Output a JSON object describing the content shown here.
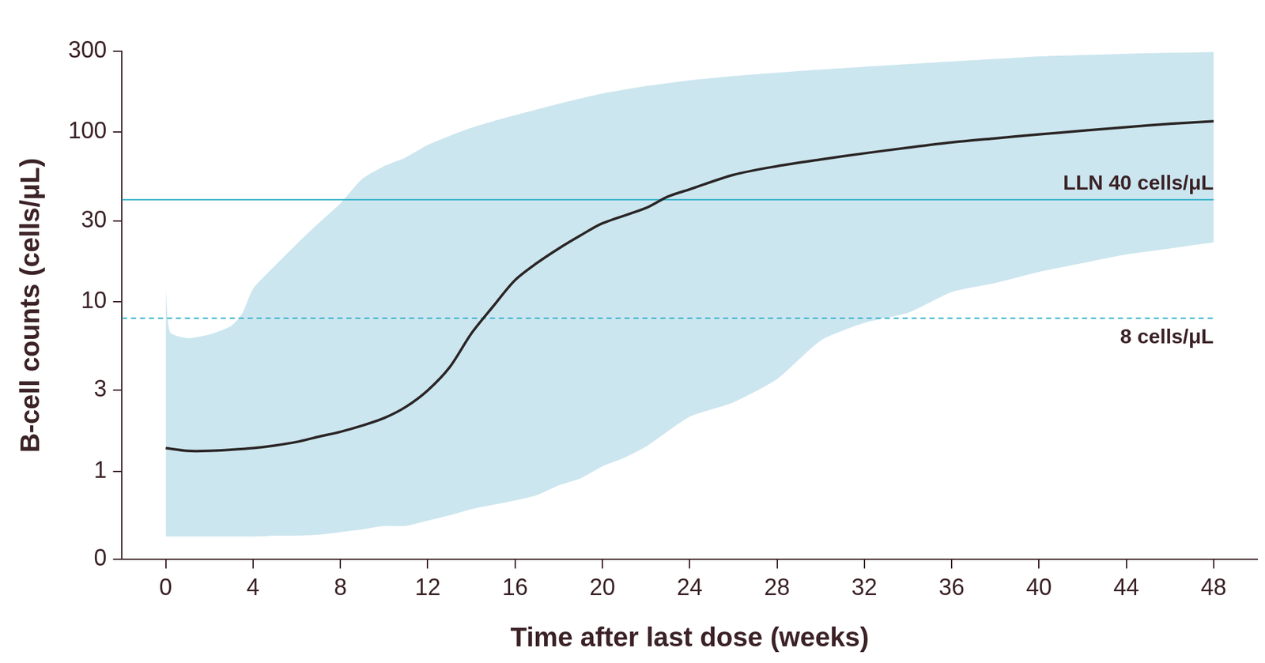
{
  "chart_data": {
    "type": "line",
    "x_label": "Time after last dose (weeks)",
    "y_label": "B-cell counts (cells/μL)",
    "x": [
      0,
      1,
      2,
      3,
      4,
      5,
      6,
      7,
      8,
      9,
      10,
      11,
      12,
      13,
      14,
      15,
      16,
      17,
      18,
      19,
      20,
      22,
      23,
      24,
      26,
      28,
      30,
      32,
      34,
      36,
      38,
      40,
      42,
      44,
      46,
      48
    ],
    "series": [
      {
        "color": "#2b2626",
        "values": [
          1.37,
          1.32,
          1.32,
          1.34,
          1.37,
          1.42,
          1.49,
          1.6,
          1.71,
          1.86,
          2.06,
          2.4,
          3.0,
          4.1,
          6.5,
          9.4,
          13.4,
          16.9,
          20.6,
          24.6,
          29,
          35.7,
          41.7,
          46,
          56,
          63,
          69,
          75,
          81,
          87,
          92,
          97,
          102,
          107,
          112,
          116
        ]
      }
    ],
    "band": {
      "x": [
        0,
        0.2,
        1,
        2,
        3,
        3.5,
        4,
        5,
        6,
        7,
        8,
        9,
        10,
        11,
        12,
        13,
        14,
        15,
        16,
        17,
        18,
        19,
        20,
        21,
        22,
        24,
        26,
        28,
        30,
        32,
        34,
        36,
        38,
        40,
        42,
        44,
        46,
        48
      ],
      "upper": [
        12,
        6.6,
        6.1,
        6.4,
        7.2,
        8.5,
        11.9,
        16.3,
        21.9,
        29,
        38,
        53,
        63,
        71,
        84,
        95,
        106,
        116,
        126,
        136,
        147,
        158,
        169,
        178,
        187,
        202,
        214,
        224,
        234,
        243,
        252,
        261,
        270,
        280,
        285,
        290,
        294,
        297
      ],
      "lower": [
        0.26,
        0.26,
        0.26,
        0.26,
        0.26,
        0.26,
        0.26,
        0.27,
        0.27,
        0.28,
        0.31,
        0.34,
        0.38,
        0.38,
        0.44,
        0.5,
        0.57,
        0.62,
        0.67,
        0.73,
        0.84,
        0.92,
        1.07,
        1.2,
        1.4,
        2.1,
        2.55,
        3.5,
        5.9,
        7.5,
        8.6,
        11.4,
        12.9,
        15,
        16.9,
        19,
        20.6,
        22.4
      ],
      "color": "#cce6ef"
    },
    "annotations": [
      {
        "label": "LLN 40 cells/μL",
        "value": 40,
        "color": "#2aaec6",
        "line_style": "solid"
      },
      {
        "label": "8 cells/μL",
        "value": 8,
        "color": "#2aaec6",
        "line_style": "dashed"
      }
    ],
    "xlim": [
      -2,
      50
    ],
    "xticks": [
      0,
      4,
      8,
      12,
      16,
      20,
      24,
      28,
      32,
      36,
      40,
      44,
      48
    ],
    "ylim": [
      0,
      300
    ],
    "yticks": [
      0,
      1,
      3,
      10,
      30,
      100,
      300
    ],
    "log": "y",
    "grid": false
  }
}
